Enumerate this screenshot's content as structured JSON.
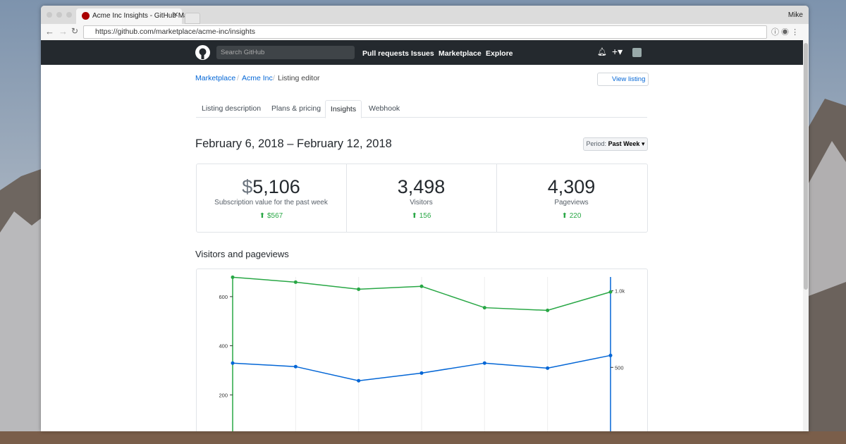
{
  "browser": {
    "tab_title": "Acme Inc Insights - GitHub Ma",
    "user": "Mike",
    "url": "https://github.com/marketplace/acme-inc/insights"
  },
  "header": {
    "search_placeholder": "Search GitHub",
    "nav": [
      "Pull requests",
      "Issues",
      "Marketplace",
      "Explore"
    ]
  },
  "breadcrumb": [
    "Marketplace",
    "Acme Inc",
    "Listing editor"
  ],
  "view_listing": "View listing",
  "tabs": [
    "Listing description",
    "Plans & pricing",
    "Insights",
    "Webhook"
  ],
  "date_range": "February 6, 2018 – February 12, 2018",
  "period": {
    "label": "Period:",
    "value": "Past Week"
  },
  "stats": [
    {
      "currency": "$",
      "value": "5,106",
      "label": "Subscription value for the past week",
      "change": "$567"
    },
    {
      "value": "3,498",
      "label": "Visitors",
      "change": "156"
    },
    {
      "value": "4,309",
      "label": "Pageviews",
      "change": "220"
    }
  ],
  "section_title": "Visitors and pageviews",
  "chart_data": {
    "type": "line",
    "categories": [
      null,
      null,
      null,
      null,
      null,
      null,
      null
    ],
    "series": [
      {
        "color": "#28a745",
        "values": [
          679,
          659,
          630,
          642,
          555,
          544,
          619
        ]
      },
      {
        "color": "#0366d6",
        "axis": "y2",
        "values": [
          528,
          505,
          413,
          463,
          528,
          495,
          578
        ]
      }
    ],
    "ylim": [
      0,
      680
    ],
    "yticks": [
      200,
      400,
      600
    ],
    "y2lim": [
      0,
      1090
    ],
    "y2ticks": [
      500,
      {
        "value": 1000,
        "label": "1.0k"
      }
    ],
    "grid": true
  }
}
